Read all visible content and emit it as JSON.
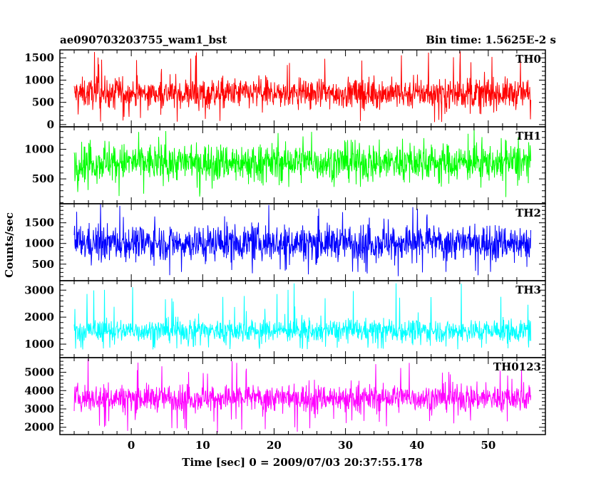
{
  "chart_data": {
    "type": "line",
    "title": "ae090703203755_wam1_bst",
    "subtitle": "Bin time: 1.5625E-2 s",
    "xlabel": "Time [sec] 0 = 2009/07/03 20:37:55.178",
    "ylabel": "Counts/sec",
    "xlim": [
      -10,
      58
    ],
    "xticks": [
      0,
      10,
      20,
      30,
      40,
      50
    ],
    "x_range": [
      -8,
      56
    ],
    "grid": false,
    "panels": [
      {
        "name": "TH0",
        "color": "#ff0000",
        "ylim": [
          -50,
          1680
        ],
        "yticks": [
          0,
          500,
          1000,
          1500
        ],
        "mean": 700,
        "spread": 300,
        "min": 50,
        "max": 1650
      },
      {
        "name": "TH1",
        "color": "#00ff00",
        "ylim": [
          80,
          1380
        ],
        "yticks": [
          500,
          1000
        ],
        "mean": 780,
        "spread": 280,
        "min": 100,
        "max": 1370
      },
      {
        "name": "TH2",
        "color": "#0000ff",
        "ylim": [
          100,
          1960
        ],
        "yticks": [
          500,
          1000,
          1500
        ],
        "mean": 1020,
        "spread": 380,
        "min": 200,
        "max": 1960
      },
      {
        "name": "TH3",
        "color": "#00ffff",
        "ylim": [
          500,
          3350
        ],
        "yticks": [
          1000,
          2000,
          3000
        ],
        "mean": 1500,
        "spread": 380,
        "min": 800,
        "max": 3350
      },
      {
        "name": "TH0123",
        "color": "#ff00ff",
        "ylim": [
          1600,
          5800
        ],
        "yticks": [
          2000,
          3000,
          4000,
          5000
        ],
        "mean": 3600,
        "spread": 650,
        "min": 1700,
        "max": 5800
      }
    ]
  }
}
